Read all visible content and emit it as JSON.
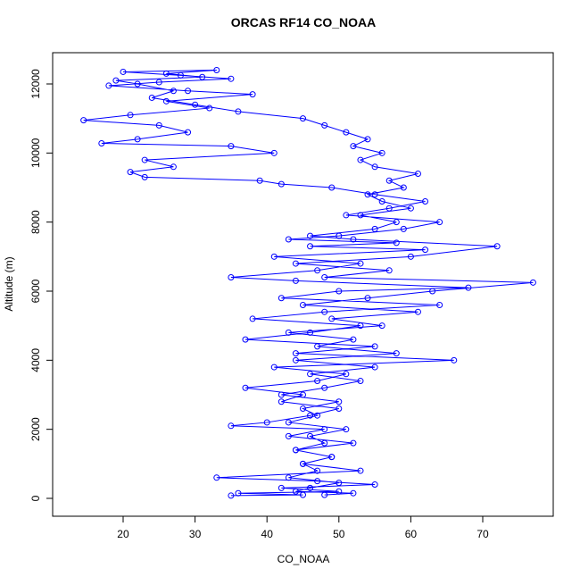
{
  "chart_data": {
    "type": "line_points",
    "title": "ORCAS RF14 CO_NOAA",
    "x_label": "CO_NOAA",
    "y_label": "Altitude (m)",
    "x": [
      48,
      52,
      44,
      46,
      50,
      43,
      47,
      45,
      49,
      44,
      48,
      46,
      51,
      43,
      47,
      45,
      50,
      42,
      48,
      53,
      46,
      55,
      44,
      58,
      47,
      52,
      43,
      56,
      49,
      61,
      45,
      54,
      63,
      77,
      48,
      57,
      44,
      60,
      72,
      52,
      46,
      55,
      58,
      53,
      60,
      56,
      54,
      59,
      57,
      61,
      55,
      53,
      56,
      52,
      54,
      51,
      48,
      45,
      36,
      30,
      24,
      27,
      22,
      19,
      31,
      26,
      33,
      20,
      28,
      35,
      25,
      18,
      29,
      38,
      26,
      32,
      21,
      14.5,
      25,
      29,
      22,
      17,
      35,
      41,
      23,
      27,
      21,
      23,
      39,
      42,
      49,
      55,
      62,
      57,
      51,
      64,
      59,
      50,
      43,
      58,
      46,
      62,
      41,
      53,
      47,
      35,
      44,
      68,
      50,
      42,
      64,
      48,
      38,
      53,
      46,
      37,
      55,
      44,
      66,
      41,
      51,
      47,
      37,
      45,
      42,
      50,
      46,
      40,
      35,
      48,
      43,
      52,
      44,
      49,
      45,
      53,
      33,
      47,
      55,
      42,
      50,
      36,
      45,
      35
    ],
    "series": [
      {
        "name": "CO_NOAA",
        "color": "#0000ff",
        "values": [
          100,
          150,
          200,
          300,
          450,
          600,
          800,
          1000,
          1200,
          1400,
          1600,
          1800,
          2000,
          2200,
          2400,
          2600,
          2800,
          3000,
          3200,
          3400,
          3600,
          3800,
          4000,
          4200,
          4400,
          4600,
          4800,
          5000,
          5200,
          5400,
          5600,
          5800,
          6000,
          6250,
          6400,
          6600,
          6800,
          7000,
          7300,
          7500,
          7600,
          7800,
          8000,
          8200,
          8400,
          8600,
          8800,
          9000,
          9200,
          9400,
          9600,
          9800,
          10000,
          10200,
          10400,
          10600,
          10800,
          11000,
          11200,
          11400,
          11600,
          11800,
          12000,
          12100,
          12200,
          12300,
          12400,
          12350,
          12250,
          12150,
          12050,
          11950,
          11800,
          11700,
          11500,
          11300,
          11100,
          10950,
          10800,
          10600,
          10400,
          10280,
          10200,
          10000,
          9800,
          9600,
          9450,
          9300,
          9200,
          9100,
          9000,
          8800,
          8600,
          8400,
          8200,
          8000,
          7800,
          7600,
          7500,
          7400,
          7300,
          7200,
          7000,
          6800,
          6600,
          6400,
          6300,
          6100,
          6000,
          5800,
          5600,
          5400,
          5200,
          5000,
          4800,
          4600,
          4400,
          4200,
          4000,
          3800,
          3600,
          3400,
          3200,
          3000,
          2800,
          2600,
          2400,
          2200,
          2100,
          2000,
          1800,
          1600,
          1400,
          1200,
          1000,
          800,
          600,
          500,
          400,
          300,
          200,
          150,
          100,
          80
        ]
      }
    ],
    "xlim": [
      10.2,
      79.8
    ],
    "ylim": [
      -517,
      12905
    ],
    "xticks": [
      20,
      30,
      40,
      50,
      60,
      70
    ],
    "yticks": [
      0,
      2000,
      4000,
      6000,
      8000,
      10000,
      12000
    ]
  }
}
